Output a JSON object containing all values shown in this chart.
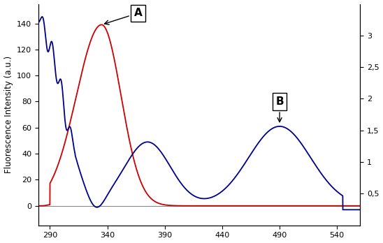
{
  "title": "",
  "xlabel": "",
  "ylabel": "Fluorescence Intensity (a.u.)",
  "xlim": [
    280,
    560
  ],
  "ylim_left": [
    -15,
    155
  ],
  "ylim_right": [
    0,
    3.5
  ],
  "xticks": [
    290,
    340,
    390,
    440,
    490,
    540
  ],
  "yticks_left": [
    0,
    20,
    40,
    60,
    80,
    100,
    120,
    140
  ],
  "yticks_right_vals": [
    0.5,
    1,
    1.5,
    2,
    2.5,
    3
  ],
  "yticks_right_labels": [
    "0,5",
    "1",
    "1,5",
    "2",
    "2,5",
    "3"
  ],
  "color_A": "#cc0000",
  "color_B": "#00008B",
  "background": "#ffffff"
}
